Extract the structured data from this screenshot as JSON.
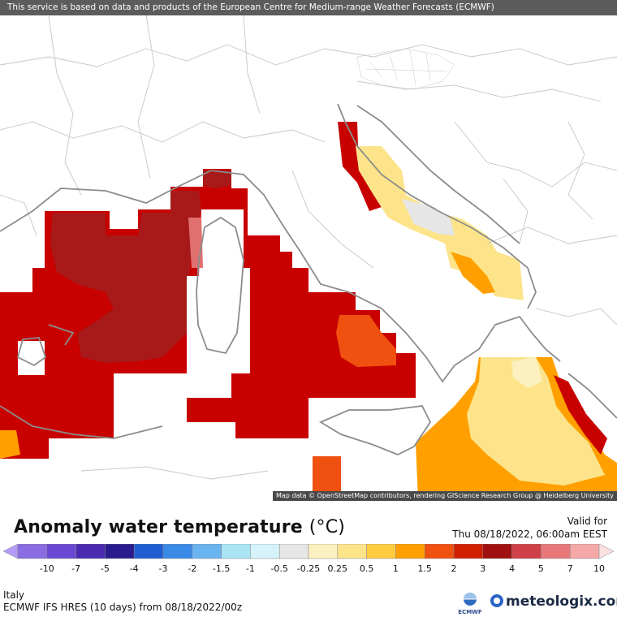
{
  "credits": {
    "service": "This service is based on data and products of the European Centre for Medium-range Weather Forecasts (ECMWF)",
    "map_data": "Map data © OpenStreetMap contributors, rendering GIScience Research Group @ Heidelberg University"
  },
  "title": {
    "text": "Anomaly water temperature",
    "unit": "(°C)"
  },
  "valid": {
    "label": "Valid for",
    "time": "Thu 08/18/2022, 06:00am EEST"
  },
  "legend": {
    "colors": [
      "#b49cf7",
      "#8a6ce3",
      "#6a4ad4",
      "#4a2ab0",
      "#2a1c8e",
      "#1e5ed2",
      "#3a8ae8",
      "#6ab4f0",
      "#a8e4f4",
      "#d6f2fa",
      "#e6e6e6",
      "#fdf0c0",
      "#fde48a",
      "#ffcc40",
      "#ffa000",
      "#f05010",
      "#d02000",
      "#a01010",
      "#d04048",
      "#e8787a",
      "#f4a8a8",
      "#fbe0e0"
    ],
    "labels": [
      "-10",
      "-7",
      "-5",
      "-4",
      "-3",
      "-2",
      "-1.5",
      "-1",
      "-0.5",
      "-0.25",
      "0.25",
      "0.5",
      "1",
      "1.5",
      "2",
      "3",
      "4",
      "5",
      "7",
      "10"
    ]
  },
  "meta": {
    "region": "Italy",
    "run": "ECMWF IFS HRES (10 days) from 08/18/2022/00z"
  },
  "logos": {
    "ecmwf": "ECMWF",
    "meteologix": "meteologix.com"
  },
  "map": {
    "legend_scale_bands": [
      "anomaly 3–4 °C dominant in Tyrrhenian Sea",
      "anomaly 4–5 °C west of Sardinia",
      "anomaly 1–1.5 °C in Ionian Sea"
    ]
  }
}
